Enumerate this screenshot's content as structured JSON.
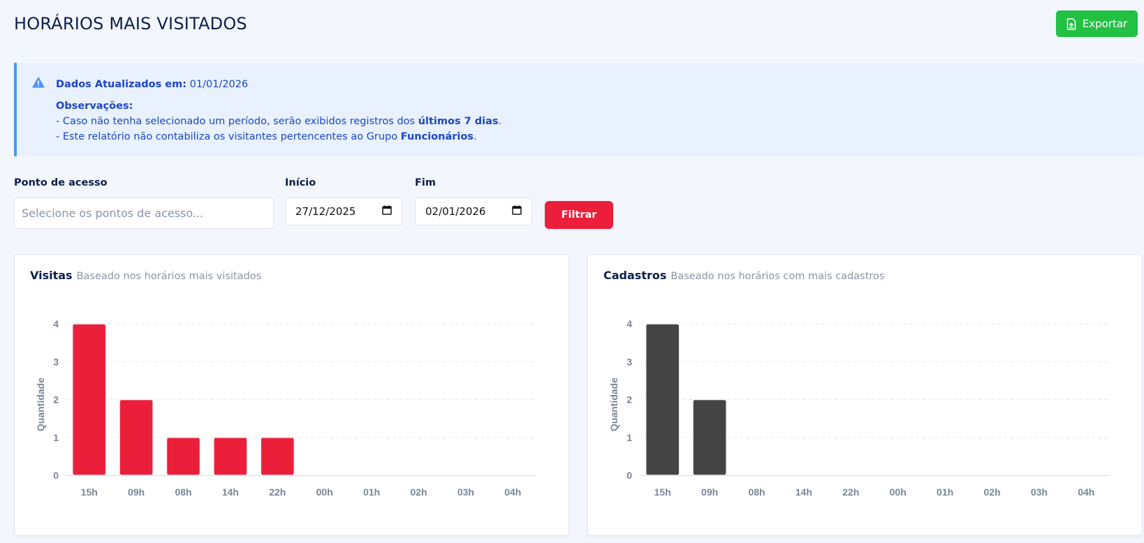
{
  "page": {
    "title": "HORÁRIOS MAIS VISITADOS"
  },
  "toolbar": {
    "export_label": "Exportar",
    "export_icon": "file-export-icon",
    "export_color": "#22c043"
  },
  "alert": {
    "updated_label": "Dados Atualizados em:",
    "updated_value": "01/01/2026",
    "obs_title": "Observações:",
    "line1_pre": "- Caso não tenha selecionado um período, serão exibidos registros dos ",
    "line1_bold": "últimos 7 dias",
    "line1_post": ".",
    "line2_pre": "- Este relatório não contabiliza os visitantes pertencentes ao Grupo ",
    "line2_bold": "Funcionários",
    "line2_post": ".",
    "icon": "warning-icon"
  },
  "filters": {
    "access_label": "Ponto de acesso",
    "access_placeholder": "Selecione os pontos de acesso...",
    "start_label": "Início",
    "start_value": "27/12/2025",
    "end_label": "Fim",
    "end_value": "02/01/2026",
    "filter_button": "Filtrar",
    "filter_color": "#ec1f3b"
  },
  "cards": {
    "visits": {
      "title": "Visitas",
      "subtitle": "Baseado nos horários mais visitados"
    },
    "registrations": {
      "title": "Cadastros",
      "subtitle": "Baseado nos horários com mais cadastros"
    }
  },
  "chart_data": [
    {
      "type": "bar",
      "categories": [
        "15h",
        "09h",
        "08h",
        "14h",
        "22h",
        "00h",
        "01h",
        "02h",
        "03h",
        "04h"
      ],
      "values": [
        4,
        2,
        1,
        1,
        1,
        0,
        0,
        0,
        0,
        0
      ],
      "ylabel": "Quantidade",
      "ylim": [
        0,
        4
      ],
      "yticks": [
        "0",
        "1",
        "2",
        "3",
        "4"
      ],
      "color": "#ec1f3b",
      "grid": true
    },
    {
      "type": "bar",
      "categories": [
        "15h",
        "09h",
        "08h",
        "14h",
        "22h",
        "00h",
        "01h",
        "02h",
        "03h",
        "04h"
      ],
      "values": [
        4,
        2,
        0,
        0,
        0,
        0,
        0,
        0,
        0,
        0
      ],
      "ylabel": "Quantidade",
      "ylim": [
        0,
        4
      ],
      "yticks": [
        "0",
        "1",
        "2",
        "3",
        "4"
      ],
      "color": "#444444",
      "grid": true
    }
  ]
}
